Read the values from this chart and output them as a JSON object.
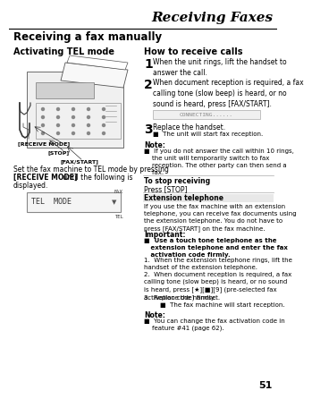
{
  "page_bg": "#ffffff",
  "header_title": "Receiving Faxes",
  "page_number": "51",
  "main_title": "Receiving a fax manually",
  "left_subtitle": "Activating TEL mode",
  "right_subtitle": "How to receive calls",
  "left_desc1": "Set the fax machine to TEL mode by pressing",
  "left_desc2_bold": "[RECEIVE MODE]",
  "left_desc3": " until the following is",
  "left_desc4": "displayed.",
  "display_box_label_top": "FAX",
  "display_box_label_bot": "TEL",
  "display_box_text": "TEL  MODE",
  "display_box_arrow": "▼",
  "step1_num": "1",
  "step1_text": "When the unit rings, lift the handset to\nanswer the call.",
  "step2_num": "2",
  "step2_text": "When document reception is required, a fax\ncalling tone (slow beep) is heard, or no\nsound is heard, press [FAX/START].",
  "connecting_text": "CONNECTING......",
  "step3_num": "3",
  "step3_text": "Replace the handset.",
  "step3_bullet": "■  The unit will start fax reception.",
  "note_label": "Note:",
  "note_bullet": "■  If you do not answer the call within 10 rings,\n    the unit will temporarily switch to fax\n    reception. The other party can then send a\n    fax.",
  "stop_label": "To stop receiving",
  "stop_text": "Press [STOP]",
  "ext_label": "Extension telephone",
  "ext_text1": "If you use the fax machine with an extension\ntelephone, you can receive fax documents using\nthe extension telephone. You do not have to\npress [FAX/START] on the fax machine.",
  "important_label": "Important:",
  "imp_bullet": "■  Use a touch tone telephone as the\n   extension telephone and enter the fax\n   activation code firmly.",
  "ext_step1": "When the extension telephone rings, lift the\nhandset of the extension telephone.",
  "ext_step2": "When document reception is required, a fax\ncalling tone (slow beep) is heard, or no sound\nis heard, press [★][■][9] (pre-selected fax\nactivation code) firmly.",
  "ext_step3": "Replace the handset.",
  "ext_step3_bullet": "■  The fax machine will start reception.",
  "note2_label": "Note:",
  "note2_bullet": "■  You can change the fax activation code in\n    feature #41 (page 62).",
  "fig_label1": "[RECEIVE MODE]",
  "fig_label2": "[STOP]",
  "fig_label3": "[FAX/START]"
}
